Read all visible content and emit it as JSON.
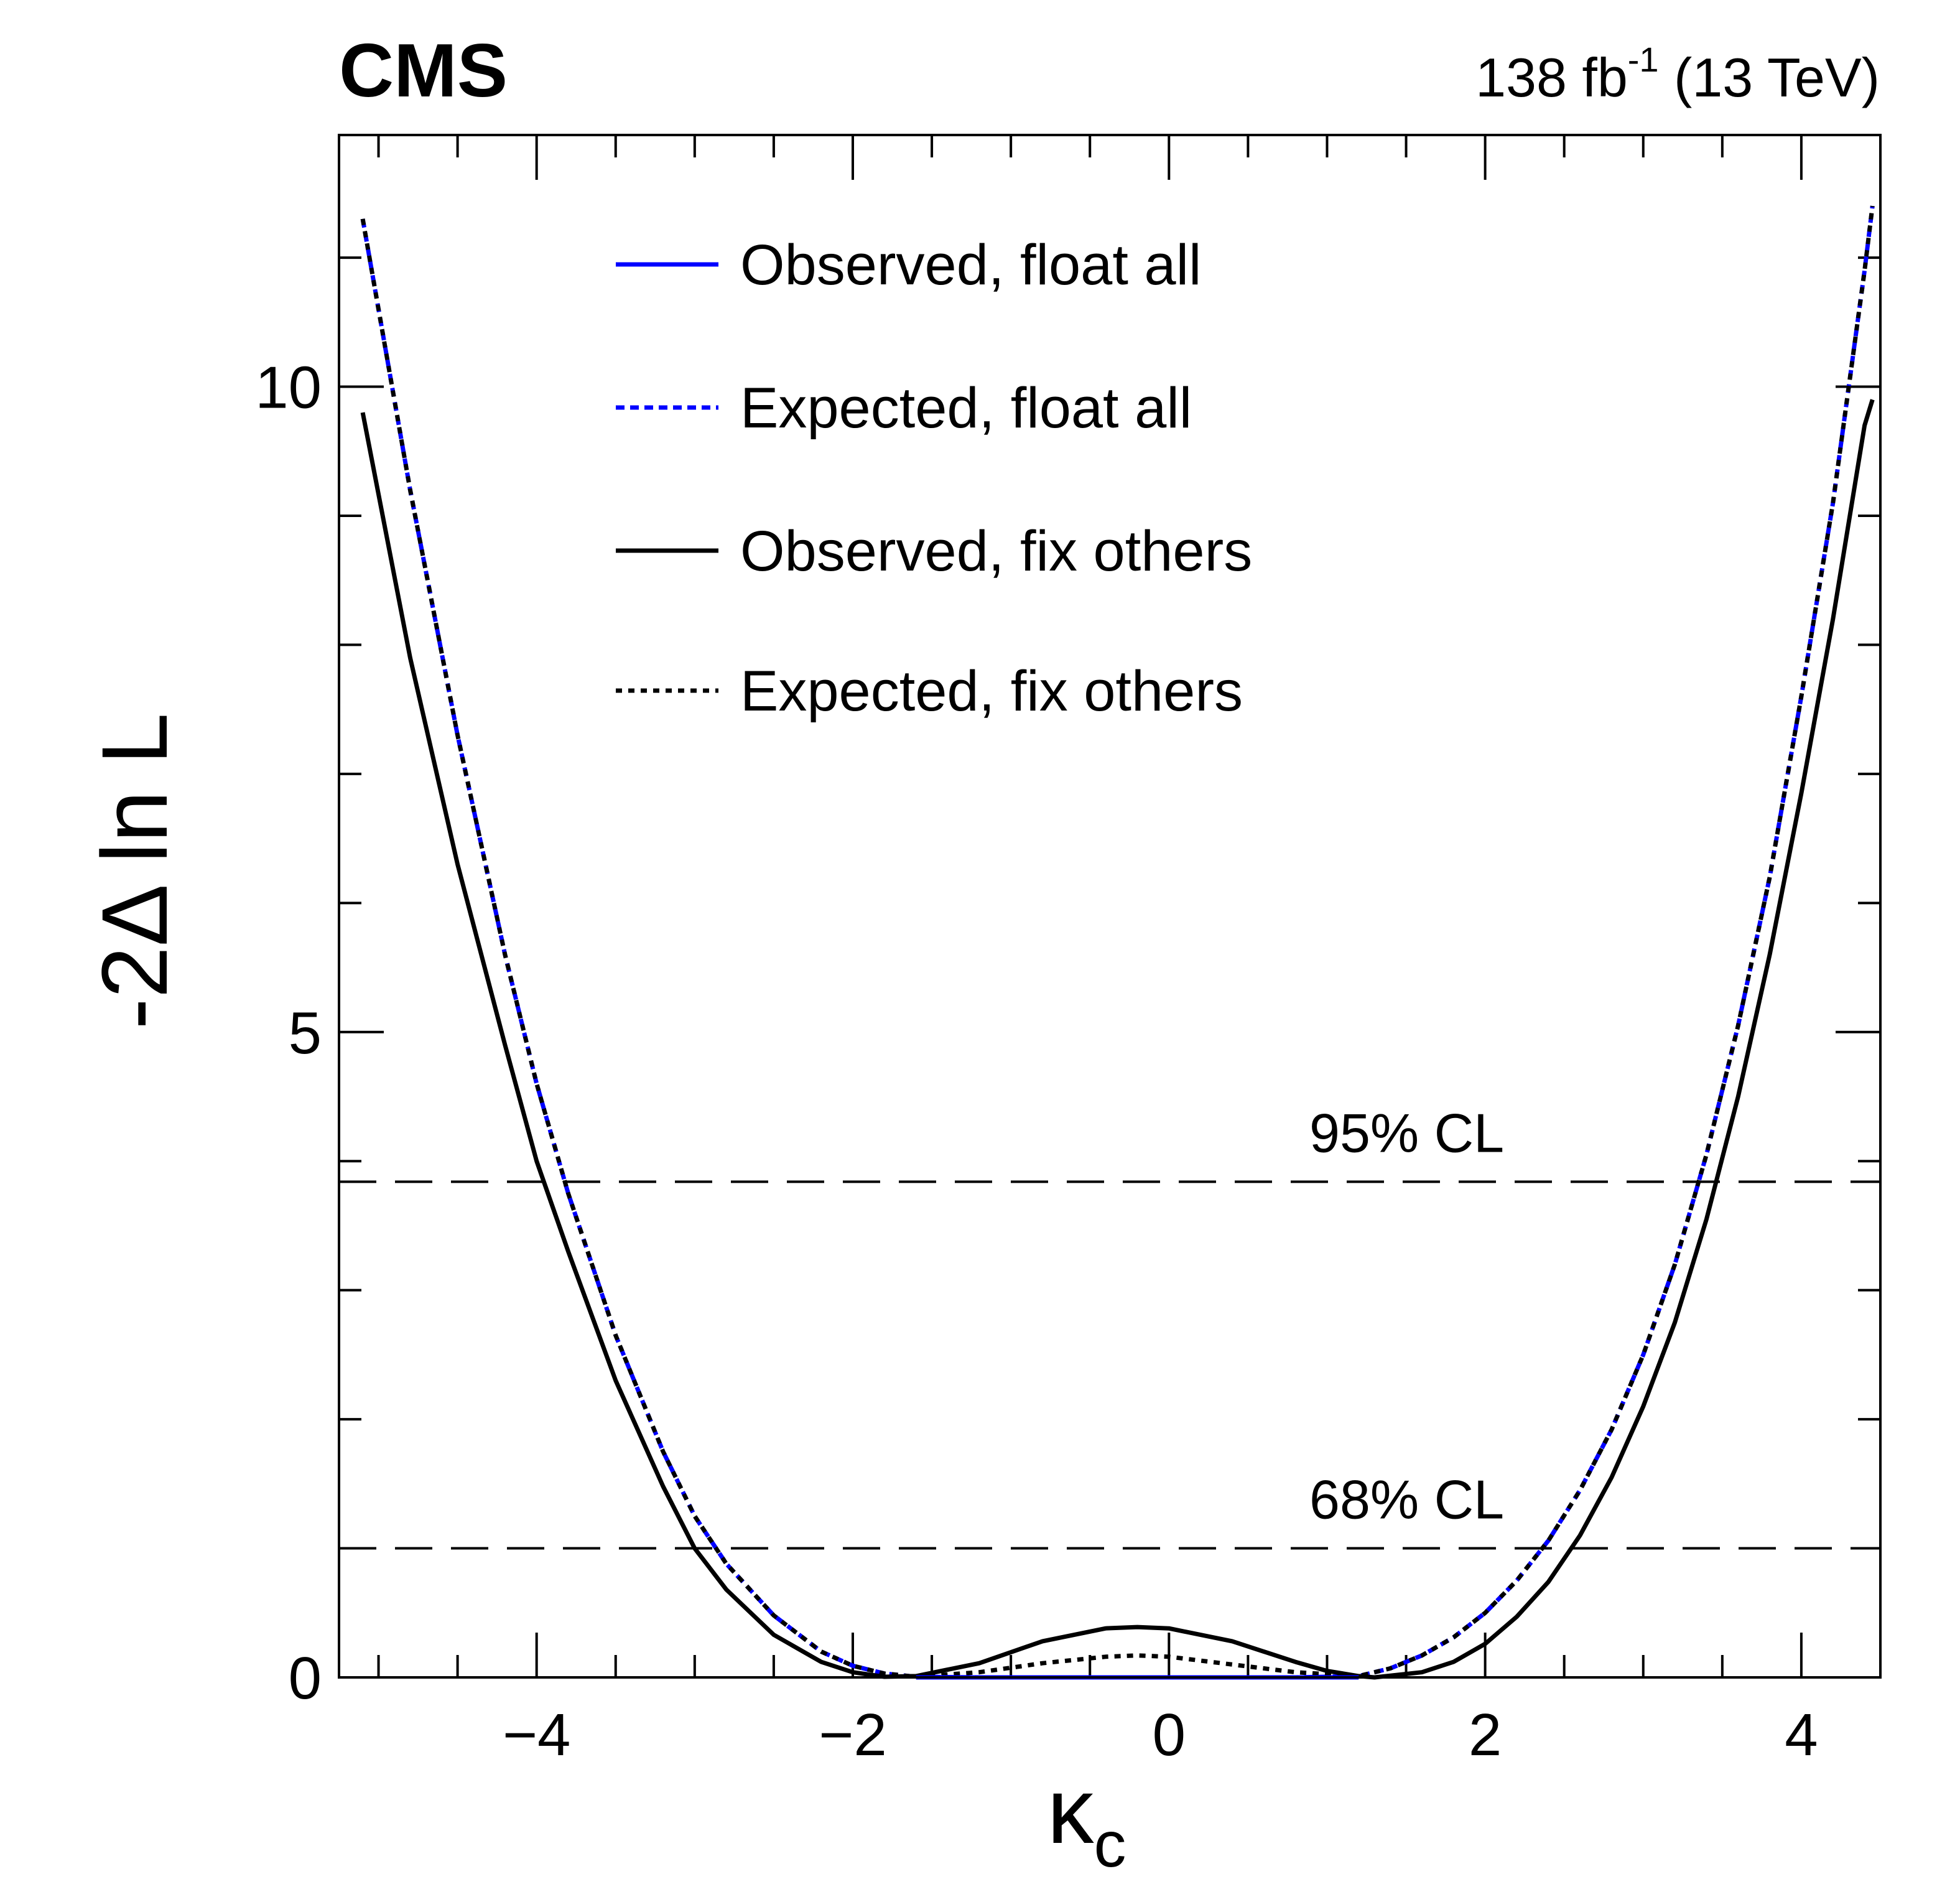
{
  "header": {
    "experiment": "CMS",
    "luminosity_value": "138 fb",
    "luminosity_exponent": "-1",
    "energy": " (13 TeV)"
  },
  "chart_data": {
    "type": "line",
    "xlabel": "κc",
    "xlabel_symbol": "κ",
    "xlabel_subscript": "c",
    "ylabel": "-2Δ ln L",
    "xlim": [
      -5.25,
      4.5
    ],
    "ylim": [
      0,
      11.95
    ],
    "x_ticks": [
      -4,
      -2,
      0,
      2,
      4
    ],
    "x_tick_labels": [
      "−4",
      "−2",
      "0",
      "2",
      "4"
    ],
    "y_ticks": [
      0,
      5,
      10
    ],
    "y_tick_labels": [
      "0",
      "5",
      "10"
    ],
    "grid": false,
    "legend_position": "top-center",
    "thresholds": [
      {
        "label": "68% CL",
        "value": 1.0
      },
      {
        "label": "95% CL",
        "value": 3.84
      }
    ],
    "series": [
      {
        "name": "Observed, float all",
        "color": "#0000ff",
        "style": "solid",
        "x": [
          -1.6,
          -1.0,
          -0.5,
          0.0,
          0.5,
          1.0,
          1.2
        ],
        "y": [
          0.0,
          0.0,
          0.0,
          0.0,
          0.0,
          0.0,
          0.0
        ]
      },
      {
        "name": "Expected, float all",
        "color": "#0000ff",
        "style": "dashed",
        "x": [
          -5.1,
          -4.8,
          -4.5,
          -4.2,
          -4.0,
          -3.8,
          -3.5,
          -3.2,
          -3.0,
          -2.8,
          -2.5,
          -2.2,
          -2.0,
          -1.8,
          -1.6,
          -1.2,
          -0.8,
          -0.4,
          0.0,
          0.4,
          0.8,
          1.2,
          1.4,
          1.6,
          1.8,
          2.0,
          2.2,
          2.4,
          2.6,
          2.8,
          3.0,
          3.2,
          3.4,
          3.6,
          3.8,
          4.0,
          4.2,
          4.4,
          4.45
        ],
        "y": [
          11.3,
          9.2,
          7.3,
          5.6,
          4.6,
          3.75,
          2.65,
          1.75,
          1.25,
          0.88,
          0.48,
          0.2,
          0.09,
          0.03,
          0.005,
          0.0,
          0.0,
          0.0,
          0.0,
          0.0,
          0.0,
          0.01,
          0.07,
          0.17,
          0.31,
          0.5,
          0.75,
          1.06,
          1.45,
          1.92,
          2.5,
          3.2,
          4.05,
          5.05,
          6.2,
          7.6,
          9.1,
          10.9,
          11.4
        ]
      },
      {
        "name": "Observed, fix others",
        "color": "#000000",
        "style": "solid",
        "x": [
          -5.1,
          -4.8,
          -4.5,
          -4.2,
          -4.0,
          -3.8,
          -3.5,
          -3.2,
          -3.0,
          -2.8,
          -2.5,
          -2.2,
          -2.0,
          -1.8,
          -1.6,
          -1.2,
          -0.8,
          -0.4,
          -0.2,
          0.0,
          0.4,
          0.8,
          1.0,
          1.2,
          1.3,
          1.6,
          1.8,
          2.0,
          2.2,
          2.4,
          2.6,
          2.8,
          3.0,
          3.2,
          3.4,
          3.6,
          3.8,
          4.0,
          4.2,
          4.4,
          4.45
        ],
        "y": [
          9.8,
          7.9,
          6.3,
          4.9,
          4.0,
          3.3,
          2.3,
          1.48,
          1.0,
          0.68,
          0.33,
          0.12,
          0.04,
          0.005,
          0.01,
          0.11,
          0.28,
          0.38,
          0.39,
          0.38,
          0.28,
          0.12,
          0.05,
          0.01,
          0.0,
          0.04,
          0.12,
          0.26,
          0.47,
          0.74,
          1.1,
          1.55,
          2.1,
          2.75,
          3.55,
          4.5,
          5.6,
          6.85,
          8.2,
          9.7,
          9.9
        ]
      },
      {
        "name": "Expected, fix others",
        "color": "#000000",
        "style": "dotted",
        "x": [
          -5.1,
          -4.8,
          -4.5,
          -4.2,
          -4.0,
          -3.8,
          -3.5,
          -3.2,
          -3.0,
          -2.8,
          -2.5,
          -2.2,
          -2.0,
          -1.8,
          -1.6,
          -1.2,
          -0.8,
          -0.4,
          -0.2,
          0.0,
          0.4,
          0.8,
          1.2,
          1.4,
          1.6,
          1.8,
          2.0,
          2.2,
          2.4,
          2.6,
          2.8,
          3.0,
          3.2,
          3.4,
          3.6,
          3.8,
          4.0,
          4.2,
          4.4,
          4.45
        ],
        "y": [
          11.3,
          9.2,
          7.3,
          5.6,
          4.6,
          3.75,
          2.65,
          1.75,
          1.25,
          0.88,
          0.48,
          0.2,
          0.09,
          0.03,
          0.005,
          0.04,
          0.11,
          0.16,
          0.17,
          0.16,
          0.1,
          0.04,
          0.01,
          0.07,
          0.17,
          0.31,
          0.5,
          0.75,
          1.06,
          1.45,
          1.92,
          2.5,
          3.2,
          4.05,
          5.05,
          6.2,
          7.6,
          9.1,
          10.9,
          11.4
        ]
      }
    ]
  }
}
